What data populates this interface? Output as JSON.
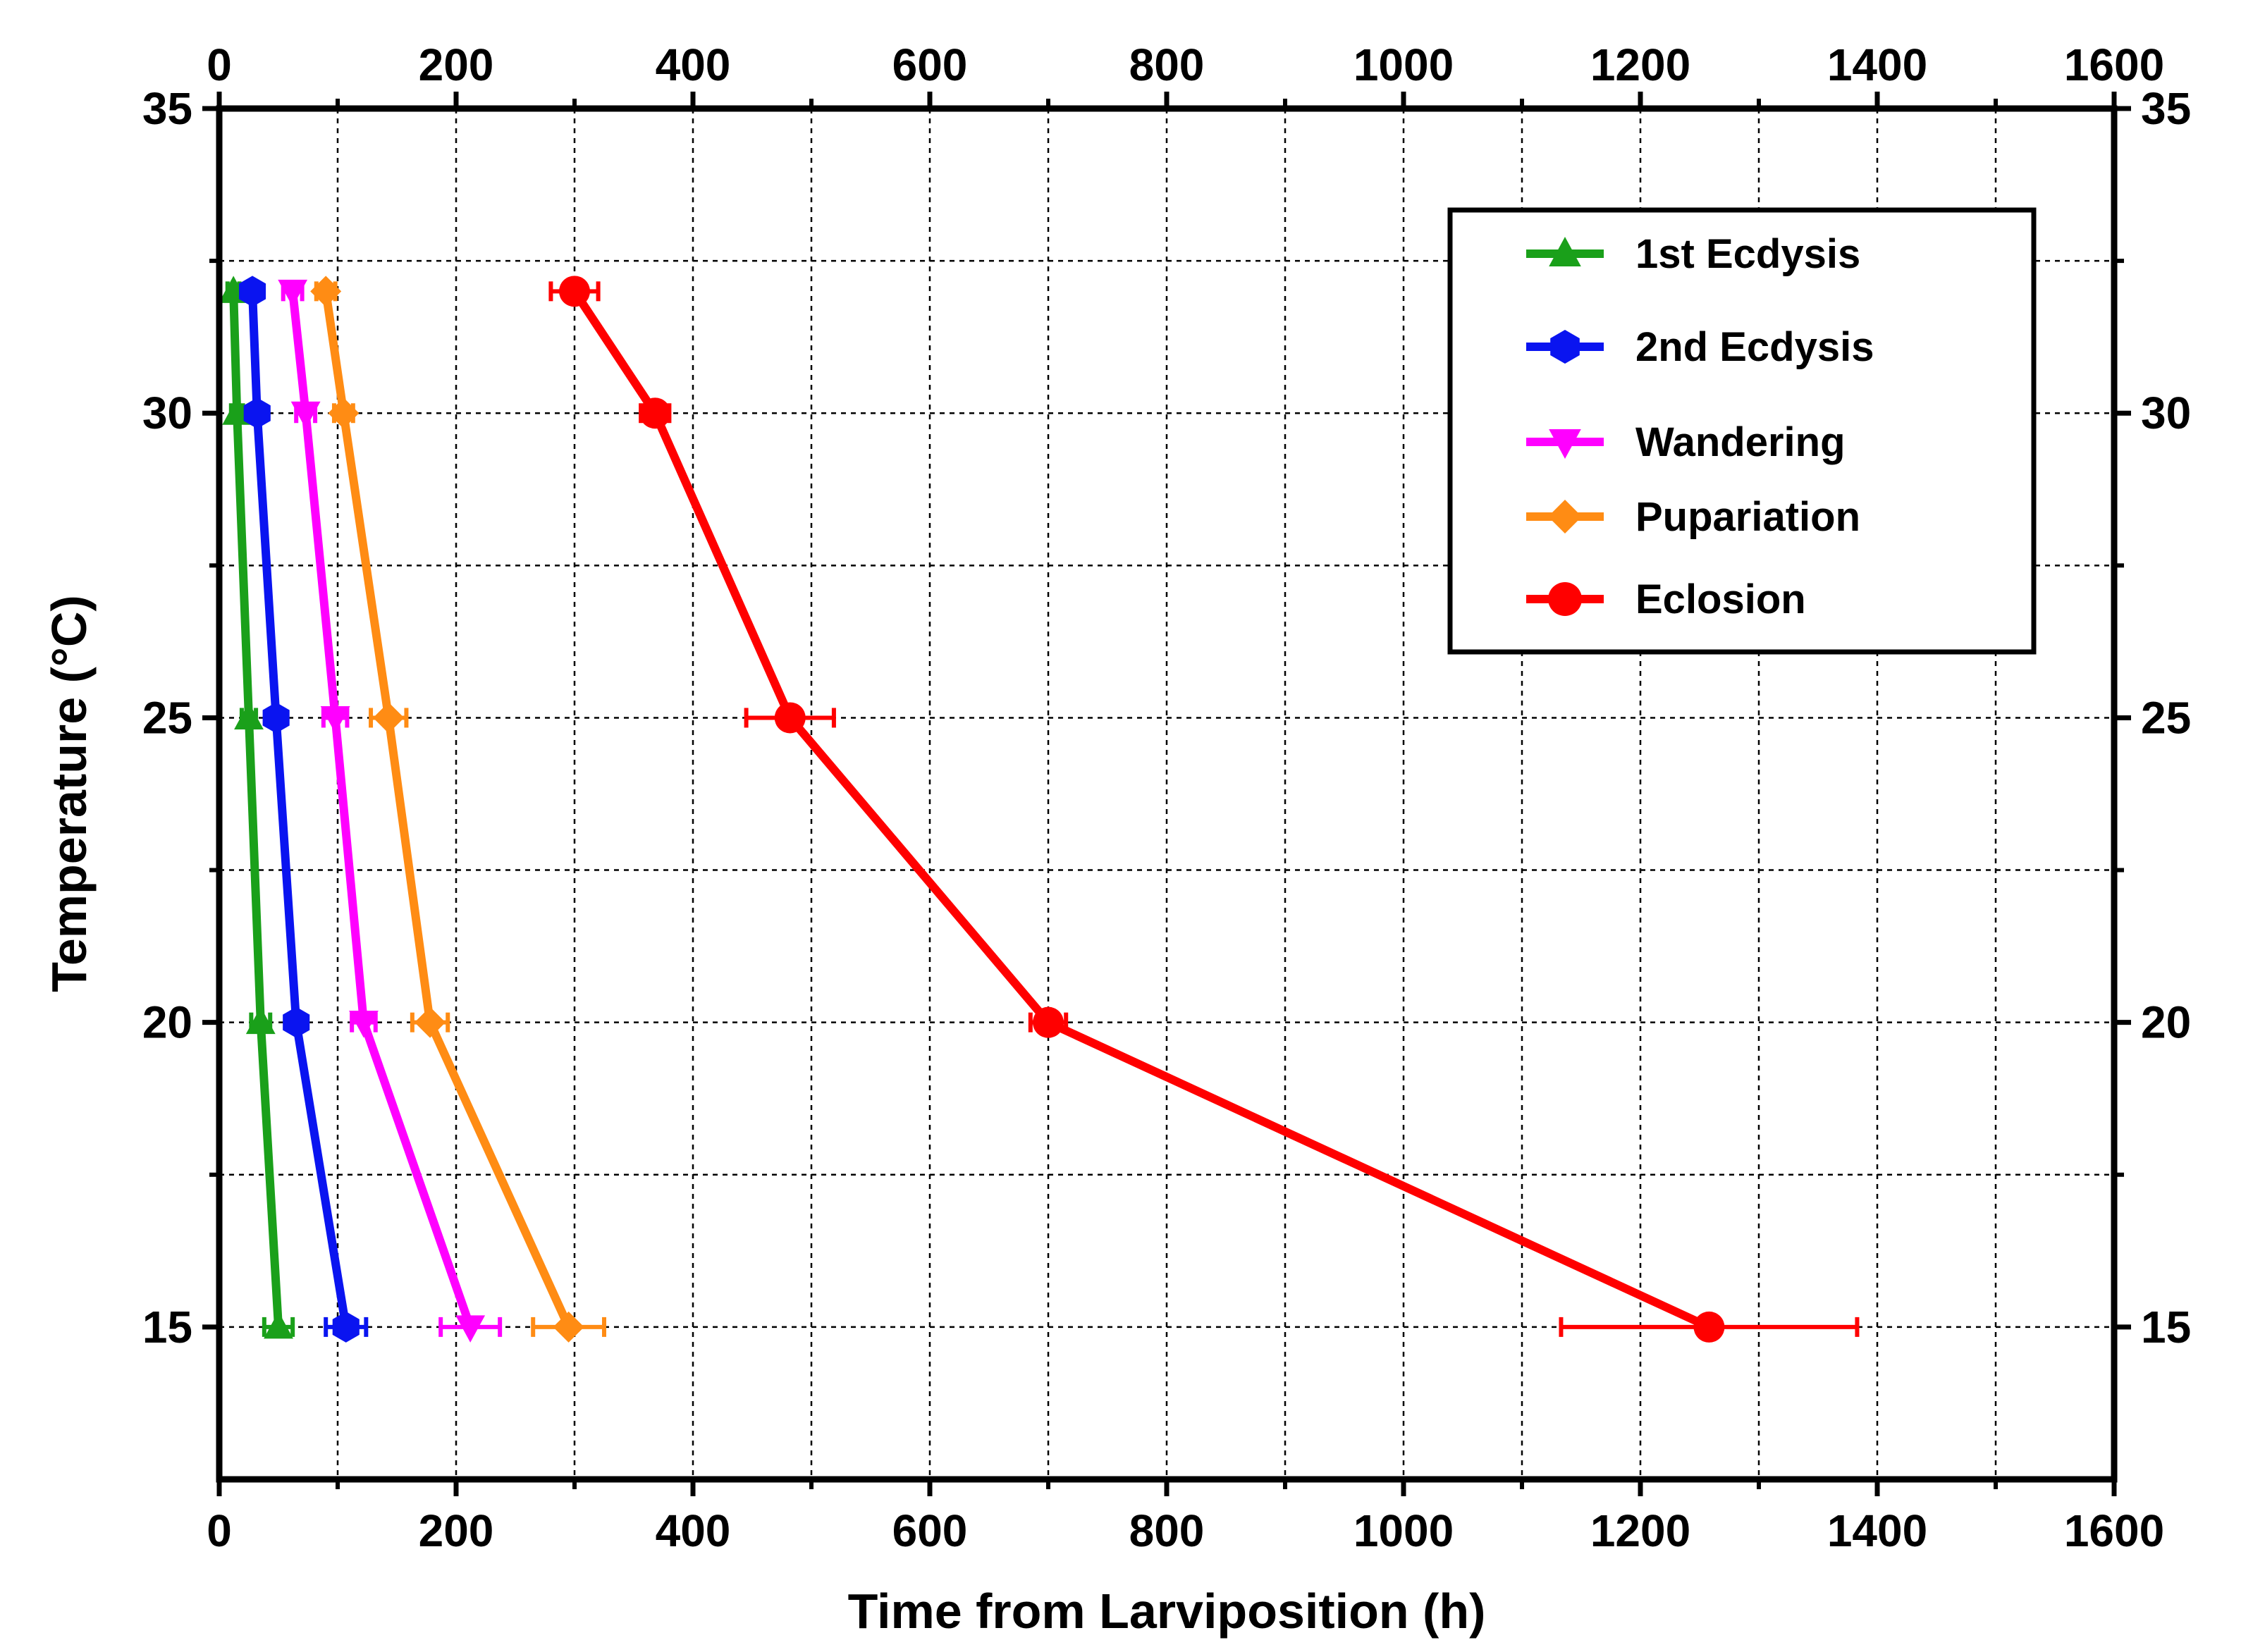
{
  "chart_data": {
    "type": "line",
    "title": "",
    "xlabel": "Time from Larviposition (h)",
    "ylabel": "Temperature (°C)",
    "xlim": [
      0,
      1600
    ],
    "ylim": [
      12.5,
      35
    ],
    "x_ticks": [
      "0",
      "200",
      "400",
      "600",
      "800",
      "1000",
      "1200",
      "1400",
      "1600"
    ],
    "y_ticks": [
      "15",
      "20",
      "25",
      "30",
      "35"
    ],
    "grid": true,
    "legend_position": "top-right",
    "series": [
      {
        "name": "1st Ecdysis",
        "color": "#1aa01a",
        "marker": "triangle-up",
        "points": [
          {
            "temperature": 32,
            "time": 12,
            "err": 5
          },
          {
            "temperature": 30,
            "time": 15,
            "err": 5
          },
          {
            "temperature": 25,
            "time": 25,
            "err": 6
          },
          {
            "temperature": 20,
            "time": 35,
            "err": 8
          },
          {
            "temperature": 15,
            "time": 50,
            "err": 12
          }
        ]
      },
      {
        "name": "2nd Ecdysis",
        "color": "#0a14f0",
        "marker": "hexagon",
        "points": [
          {
            "temperature": 32,
            "time": 28,
            "err": 6
          },
          {
            "temperature": 30,
            "time": 32,
            "err": 6
          },
          {
            "temperature": 25,
            "time": 48,
            "err": 6
          },
          {
            "temperature": 20,
            "time": 65,
            "err": 6
          },
          {
            "temperature": 15,
            "time": 107,
            "err": 17
          }
        ]
      },
      {
        "name": "Wandering",
        "color": "#ff00ff",
        "marker": "triangle-down",
        "points": [
          {
            "temperature": 32,
            "time": 62,
            "err": 8
          },
          {
            "temperature": 30,
            "time": 73,
            "err": 8
          },
          {
            "temperature": 25,
            "time": 98,
            "err": 10
          },
          {
            "temperature": 20,
            "time": 122,
            "err": 10
          },
          {
            "temperature": 15,
            "time": 212,
            "err": 25
          }
        ]
      },
      {
        "name": "Pupariation",
        "color": "#ff8c14",
        "marker": "diamond",
        "points": [
          {
            "temperature": 32,
            "time": 90,
            "err": 8
          },
          {
            "temperature": 30,
            "time": 105,
            "err": 8
          },
          {
            "temperature": 25,
            "time": 143,
            "err": 15
          },
          {
            "temperature": 20,
            "time": 178,
            "err": 15
          },
          {
            "temperature": 15,
            "time": 295,
            "err": 30
          }
        ]
      },
      {
        "name": "Eclosion",
        "color": "#ff0000",
        "marker": "circle",
        "points": [
          {
            "temperature": 32,
            "time": 300,
            "err": 20
          },
          {
            "temperature": 30,
            "time": 368,
            "err": 12
          },
          {
            "temperature": 25,
            "time": 482,
            "err": 37
          },
          {
            "temperature": 20,
            "time": 700,
            "err": 15
          },
          {
            "temperature": 15,
            "time": 1258,
            "err": 125
          }
        ]
      }
    ]
  }
}
